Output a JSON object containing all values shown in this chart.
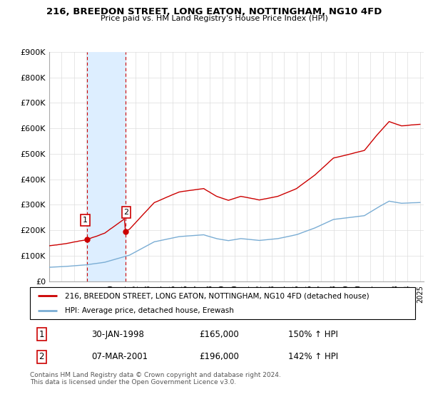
{
  "title": "216, BREEDON STREET, LONG EATON, NOTTINGHAM, NG10 4FD",
  "subtitle": "Price paid vs. HM Land Registry's House Price Index (HPI)",
  "legend_line1": "216, BREEDON STREET, LONG EATON, NOTTINGHAM, NG10 4FD (detached house)",
  "legend_line2": "HPI: Average price, detached house, Erewash",
  "footnote": "Contains HM Land Registry data © Crown copyright and database right 2024.\nThis data is licensed under the Open Government Licence v3.0.",
  "sale1_date": "30-JAN-1998",
  "sale1_price": 165000,
  "sale1_label": "150% ↑ HPI",
  "sale2_date": "07-MAR-2001",
  "sale2_price": 196000,
  "sale2_label": "142% ↑ HPI",
  "ylim": [
    0,
    900000
  ],
  "yticks": [
    0,
    100000,
    200000,
    300000,
    400000,
    500000,
    600000,
    700000,
    800000,
    900000
  ],
  "ytick_labels": [
    "£0",
    "£100K",
    "£200K",
    "£300K",
    "£400K",
    "£500K",
    "£600K",
    "£700K",
    "£800K",
    "£900K"
  ],
  "hpi_color": "#7aadd4",
  "price_color": "#cc0000",
  "highlight_color": "#ddeeff",
  "sale1_x": 1998.08,
  "sale2_x": 2001.18,
  "xlim_left": 1995.0,
  "xlim_right": 2025.3
}
